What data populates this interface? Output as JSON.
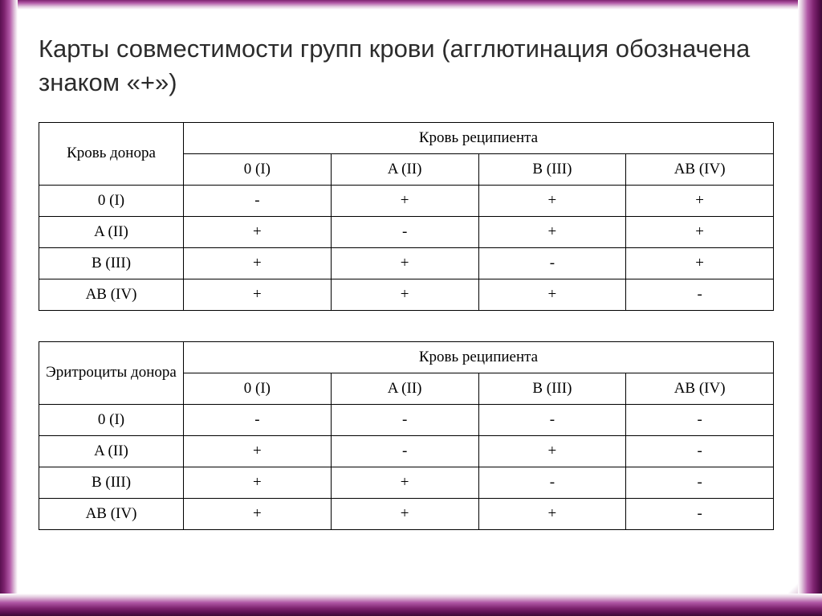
{
  "colors": {
    "frame_dark": "#3d0a36",
    "frame_mid": "#7e2470",
    "frame_light": "#b158a6",
    "title_text": "#2c2c2c",
    "table_border": "#000000",
    "table_text": "#000000",
    "background": "#ffffff"
  },
  "typography": {
    "title_font": "Verdana",
    "title_fontsize_pt": 24,
    "title_weight": "normal",
    "table_font": "Times New Roman",
    "table_fontsize_pt": 14
  },
  "title": "Карты совместимости групп крови (агглютинация обозначена знаком «+»)",
  "table1": {
    "type": "table",
    "row_header_label": "Кровь донора",
    "col_group_label": "Кровь реципиента",
    "columns": [
      "0 (I)",
      "A (II)",
      "B (III)",
      "AB (IV)"
    ],
    "rows": [
      {
        "label": "0 (I)",
        "cells": [
          "-",
          "+",
          "+",
          "+"
        ]
      },
      {
        "label": "A (II)",
        "cells": [
          "+",
          "-",
          "+",
          "+"
        ]
      },
      {
        "label": "B (III)",
        "cells": [
          "+",
          "+",
          "-",
          "+"
        ]
      },
      {
        "label": "AB (IV)",
        "cells": [
          "+",
          "+",
          "+",
          "-"
        ]
      }
    ]
  },
  "table2": {
    "type": "table",
    "row_header_label": "Эритроциты донора",
    "col_group_label": "Кровь реципиента",
    "columns": [
      "0 (I)",
      "A (II)",
      "B (III)",
      "AB (IV)"
    ],
    "rows": [
      {
        "label": "0 (I)",
        "cells": [
          "-",
          "-",
          "-",
          "-"
        ]
      },
      {
        "label": "A (II)",
        "cells": [
          "+",
          "-",
          "+",
          "-"
        ]
      },
      {
        "label": "B (III)",
        "cells": [
          "+",
          "+",
          "-",
          "-"
        ]
      },
      {
        "label": "AB (IV)",
        "cells": [
          "+",
          "+",
          "+",
          "-"
        ]
      }
    ]
  }
}
